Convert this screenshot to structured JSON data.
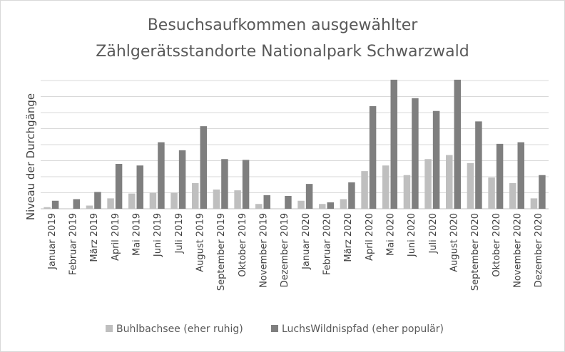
{
  "chart_data": {
    "type": "bar",
    "title_lines": [
      "Besuchsaufkommen  ausgewählter",
      "Zählgerätsstandorte Nationalpark Schwarzwald"
    ],
    "xlabel": "",
    "ylabel": "Niveau der Durchgänge",
    "ylim": [
      0,
      8
    ],
    "y_tick_labels_shown": false,
    "grid": true,
    "legend_position": "bottom",
    "categories": [
      "Januar 2019",
      "Februar 2019",
      "März 2019",
      "April 2019",
      "Mai 2019",
      "Juni 2019",
      "Juli 2019",
      "August 2019",
      "September 2019",
      "Oktober 2019",
      "November 2019",
      "Dezember 2019",
      "Januar 2020",
      "Februar 2020",
      "März 2020",
      "April 2020",
      "Mai 2020",
      "Juni 2020",
      "Juli 2020",
      "August 2020",
      "September 2020",
      "Oktober 2020",
      "November 2020",
      "Dezember 2020"
    ],
    "series": [
      {
        "name": "Buhlbachsee (eher ruhig)",
        "color": "#bfbfbf",
        "values": [
          0.1,
          0.0,
          0.2,
          0.65,
          0.95,
          1.0,
          1.0,
          1.6,
          1.2,
          1.15,
          0.3,
          0.0,
          0.5,
          0.3,
          0.6,
          2.35,
          2.7,
          2.1,
          3.1,
          3.35,
          2.85,
          1.95,
          1.6,
          0.65
        ]
      },
      {
        "name": "LuchsWildnispfad (eher populär)",
        "color": "#7f7f7f",
        "values": [
          0.5,
          0.6,
          1.05,
          2.8,
          2.7,
          4.15,
          3.65,
          5.15,
          3.1,
          3.05,
          0.85,
          0.8,
          1.55,
          0.4,
          1.65,
          6.4,
          8.05,
          6.9,
          6.1,
          8.05,
          5.45,
          4.05,
          4.15,
          2.1
        ]
      }
    ]
  }
}
